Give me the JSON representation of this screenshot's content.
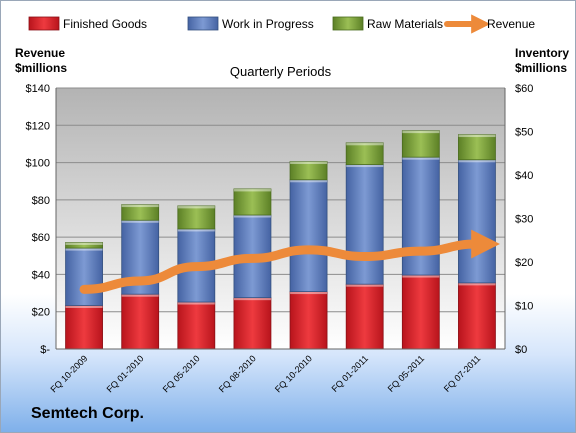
{
  "chart_data": {
    "type": "bar",
    "stacked": true,
    "title": "Quarterly Periods",
    "ylabel_left": "Revenue\n$millions",
    "ylabel_right": "Inventory\n$millions",
    "categories": [
      "FQ 10-2009",
      "FQ 01-2010",
      "FQ 05-2010",
      "FQ 08-2010",
      "FQ 10-2010",
      "FQ 01-2011",
      "FQ 05-2011",
      "FQ 07-2011"
    ],
    "series": [
      {
        "name": "Finished Goods",
        "axis": "right",
        "color": "#d7262e",
        "values": [
          10,
          12.6,
          10.8,
          11.8,
          13.2,
          14.9,
          17.0,
          15.2
        ]
      },
      {
        "name": "Work in Progress",
        "axis": "right",
        "color": "#5b7dbd",
        "values": [
          13.2,
          17.0,
          16.8,
          19.0,
          25.7,
          27.5,
          27.1,
          28.3
        ]
      },
      {
        "name": "Raw Materials",
        "axis": "right",
        "color": "#7aa03b",
        "values": [
          1.3,
          3.6,
          5.3,
          6.0,
          4.2,
          5.0,
          6.1,
          5.8
        ]
      },
      {
        "name": "Revenue",
        "axis": "left",
        "type": "line",
        "color": "#ed8a3a",
        "values": [
          32,
          36.5,
          44.2,
          48.6,
          53.2,
          49.6,
          52.5,
          56.3
        ]
      }
    ],
    "ylim_left": [
      0,
      140
    ],
    "yticks_left": [
      "$-",
      "$20",
      "$40",
      "$60",
      "$80",
      "$100",
      "$120",
      "$140"
    ],
    "ylim_right": [
      0,
      60
    ],
    "yticks_right": [
      "$0",
      "$10",
      "$20",
      "$30",
      "$40",
      "$50",
      "$60"
    ],
    "grid": true,
    "legend": "top"
  },
  "footer": {
    "company": "Semtech Corp."
  }
}
